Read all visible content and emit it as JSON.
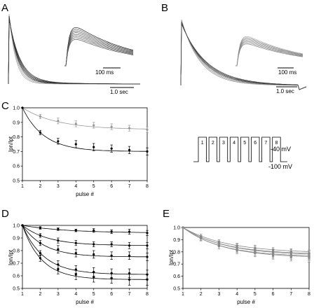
{
  "panels": {
    "A": {
      "label": "A",
      "inset_scale": "100 ms",
      "main_scale": "1.0 sec"
    },
    "B": {
      "label": "B",
      "inset_scale": "100 ms",
      "main_scale": "1.0 sec"
    },
    "C": {
      "label": "C"
    },
    "D": {
      "label": "D"
    },
    "E": {
      "label": "E"
    }
  },
  "protocol": {
    "pulses": [
      "1",
      "2",
      "3",
      "4",
      "5",
      "6",
      "7",
      "8"
    ],
    "top_level": "-40 mV",
    "bottom_level": "-100 mV"
  },
  "chart_data": [
    {
      "panel": "C",
      "type": "scatter",
      "xlabel": "pulse #",
      "ylabel": "Ipn/Ipt",
      "xlim": [
        1,
        8
      ],
      "ylim": [
        0.5,
        1.0
      ],
      "xticks": [
        "1",
        "2",
        "3",
        "4",
        "5",
        "6",
        "7",
        "8"
      ],
      "yticks": [
        "0.5",
        "0.6",
        "0.7",
        "0.8",
        "0.9",
        "1.0"
      ],
      "series": [
        {
          "color": "#999999",
          "x": [
            1,
            2,
            3,
            4,
            5,
            6,
            7,
            8
          ],
          "values": [
            1.0,
            0.94,
            0.91,
            0.89,
            0.88,
            0.87,
            0.86,
            0.85
          ],
          "errors": [
            0.0,
            0.015,
            0.02,
            0.02,
            0.02,
            0.02,
            0.02,
            0.02
          ]
        },
        {
          "color": "#000000",
          "x": [
            1,
            2,
            3,
            4,
            5,
            6,
            7,
            8
          ],
          "values": [
            1.0,
            0.83,
            0.77,
            0.75,
            0.73,
            0.72,
            0.71,
            0.7
          ],
          "errors": [
            0.0,
            0.015,
            0.02,
            0.025,
            0.025,
            0.025,
            0.025,
            0.025
          ]
        }
      ]
    },
    {
      "panel": "D",
      "type": "scatter",
      "xlabel": "pulse #",
      "ylabel": "Ipn/Ipt",
      "xlim": [
        1,
        8
      ],
      "ylim": [
        0.5,
        1.0
      ],
      "xticks": [
        "1",
        "2",
        "3",
        "4",
        "5",
        "6",
        "7",
        "8"
      ],
      "yticks": [
        "0.5",
        "0.6",
        "0.7",
        "0.8",
        "0.9",
        "1.0"
      ],
      "series": [
        {
          "color": "#000000",
          "x": [
            1,
            2,
            3,
            4,
            5,
            6,
            7,
            8
          ],
          "values": [
            1.0,
            0.98,
            0.97,
            0.96,
            0.96,
            0.95,
            0.95,
            0.94
          ],
          "errors": [
            0.0,
            0.01,
            0.01,
            0.01,
            0.015,
            0.015,
            0.02,
            0.02
          ]
        },
        {
          "color": "#000000",
          "x": [
            1,
            2,
            3,
            4,
            5,
            6,
            7,
            8
          ],
          "values": [
            1.0,
            0.92,
            0.88,
            0.86,
            0.85,
            0.85,
            0.84,
            0.84
          ],
          "errors": [
            0.0,
            0.015,
            0.02,
            0.02,
            0.02,
            0.02,
            0.025,
            0.025
          ]
        },
        {
          "color": "#000000",
          "x": [
            1,
            2,
            3,
            4,
            5,
            6,
            7,
            8
          ],
          "values": [
            1.0,
            0.86,
            0.81,
            0.78,
            0.77,
            0.76,
            0.76,
            0.75
          ],
          "errors": [
            0.0,
            0.02,
            0.03,
            0.03,
            0.03,
            0.03,
            0.03,
            0.03
          ]
        },
        {
          "color": "#000000",
          "x": [
            1,
            2,
            3,
            4,
            5,
            6,
            7,
            8
          ],
          "values": [
            1.0,
            0.78,
            0.69,
            0.65,
            0.63,
            0.62,
            0.62,
            0.61
          ],
          "errors": [
            0.0,
            0.02,
            0.03,
            0.03,
            0.035,
            0.035,
            0.035,
            0.035
          ]
        },
        {
          "color": "#000000",
          "x": [
            1,
            2,
            3,
            4,
            5,
            6,
            7,
            8
          ],
          "values": [
            1.0,
            0.74,
            0.65,
            0.61,
            0.59,
            0.58,
            0.57,
            0.57
          ],
          "errors": [
            0.0,
            0.025,
            0.035,
            0.04,
            0.04,
            0.04,
            0.045,
            0.045
          ]
        }
      ]
    },
    {
      "panel": "E",
      "type": "scatter",
      "xlabel": "pulse #",
      "ylabel": "Ipn/Ipt",
      "xlim": [
        1,
        8
      ],
      "ylim": [
        0.5,
        1.0
      ],
      "xticks": [
        "1",
        "2",
        "3",
        "4",
        "5",
        "6",
        "7",
        "8"
      ],
      "yticks": [
        "0.5",
        "0.6",
        "0.7",
        "0.8",
        "0.9",
        "1.0"
      ],
      "series": [
        {
          "color": "#888888",
          "x": [
            1,
            2,
            3,
            4,
            5,
            6,
            7,
            8
          ],
          "values": [
            1.0,
            0.93,
            0.88,
            0.85,
            0.83,
            0.81,
            0.8,
            0.79
          ],
          "errors": [
            0.0,
            0.015,
            0.02,
            0.02,
            0.025,
            0.025,
            0.025,
            0.025
          ]
        },
        {
          "color": "#888888",
          "x": [
            1,
            2,
            3,
            4,
            5,
            6,
            7,
            8
          ],
          "values": [
            1.0,
            0.92,
            0.87,
            0.84,
            0.82,
            0.8,
            0.79,
            0.78
          ],
          "errors": [
            0.0,
            0.015,
            0.02,
            0.025,
            0.025,
            0.025,
            0.03,
            0.03
          ]
        },
        {
          "color": "#888888",
          "x": [
            1,
            2,
            3,
            4,
            5,
            6,
            7,
            8
          ],
          "values": [
            1.0,
            0.92,
            0.86,
            0.83,
            0.81,
            0.79,
            0.78,
            0.77
          ],
          "errors": [
            0.0,
            0.015,
            0.02,
            0.025,
            0.025,
            0.03,
            0.03,
            0.03
          ]
        },
        {
          "color": "#888888",
          "x": [
            1,
            2,
            3,
            4,
            5,
            6,
            7,
            8
          ],
          "values": [
            1.0,
            0.91,
            0.86,
            0.82,
            0.8,
            0.78,
            0.77,
            0.76
          ],
          "errors": [
            0.0,
            0.015,
            0.02,
            0.025,
            0.03,
            0.03,
            0.03,
            0.03
          ]
        },
        {
          "color": "#888888",
          "x": [
            1,
            2,
            3,
            4,
            5,
            6,
            7,
            8
          ],
          "values": [
            1.0,
            0.91,
            0.85,
            0.81,
            0.79,
            0.77,
            0.76,
            0.75
          ],
          "errors": [
            0.0,
            0.02,
            0.025,
            0.025,
            0.03,
            0.03,
            0.035,
            0.035
          ]
        }
      ]
    }
  ]
}
